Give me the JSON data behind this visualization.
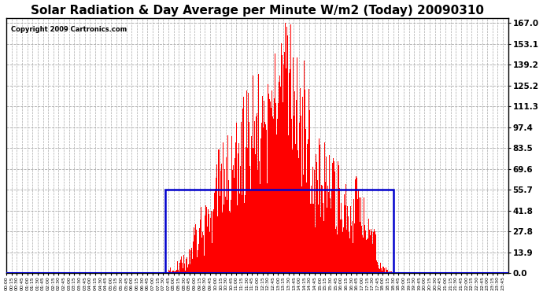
{
  "title": "Solar Radiation & Day Average per Minute W/m2 (Today) 20090310",
  "copyright": "Copyright 2009 Cartronics.com",
  "yticks": [
    0.0,
    13.9,
    27.8,
    41.8,
    55.7,
    69.6,
    83.5,
    97.4,
    111.3,
    125.2,
    139.2,
    153.1,
    167.0
  ],
  "ymax": 167.0,
  "ymin": 0.0,
  "bar_color": "#FF0000",
  "background_color": "#FFFFFF",
  "grid_color": "#AAAAAA",
  "box_color": "#0000CC",
  "baseline_color": "#0000CC",
  "title_fontsize": 11,
  "copyright_fontsize": 6,
  "n_minutes": 1440,
  "sunrise_minute": 455,
  "sunset_minute": 1110,
  "day_avg": 55.7,
  "solar_peak": 167.0,
  "tick_interval": 15
}
